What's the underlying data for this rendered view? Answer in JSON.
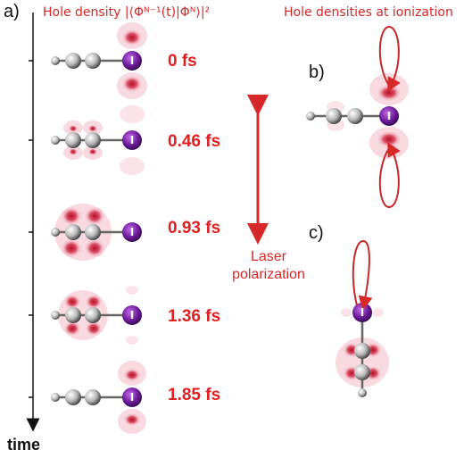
{
  "panel_labels": {
    "a": "a)",
    "b": "b)",
    "c": "c)"
  },
  "header_left": "Hole density |⟨Φᴺ⁻¹(t)|Φᴺ⟩|²",
  "header_right": "Hole densities at ionization",
  "axis_label": "time",
  "time_labels": [
    "0 fs",
    "0.46 fs",
    "0.93 fs",
    "1.36 fs",
    "1.85 fs"
  ],
  "laser_label": [
    "Laser",
    "polarization"
  ],
  "iodine_symbol": "I",
  "colors": {
    "accent_red": "#d62828",
    "iodine": "#7a1fa2",
    "density_light": "#f4c6cf",
    "density_dark": "#b3132b"
  }
}
